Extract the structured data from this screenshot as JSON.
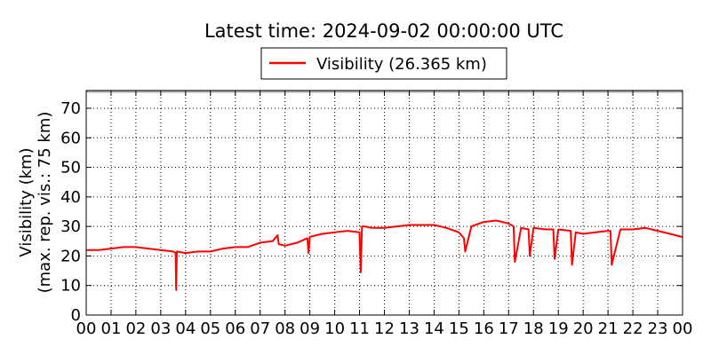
{
  "chart_data": {
    "type": "line",
    "title": "Latest time: 2024-09-02 00:00:00 UTC",
    "ylabel_line1": "Visibility (km)",
    "ylabel_line2": "(max. rep. vis.: 75 km)",
    "xlabel": "",
    "xlim": [
      0,
      24
    ],
    "ylim": [
      0,
      76
    ],
    "x_ticks": [
      0,
      1,
      2,
      3,
      4,
      5,
      6,
      7,
      8,
      9,
      10,
      11,
      12,
      13,
      14,
      15,
      16,
      17,
      18,
      19,
      20,
      21,
      22,
      23,
      24
    ],
    "x_tick_labels": [
      "00",
      "01",
      "02",
      "03",
      "04",
      "05",
      "06",
      "07",
      "08",
      "09",
      "10",
      "11",
      "12",
      "13",
      "14",
      "15",
      "16",
      "17",
      "18",
      "19",
      "20",
      "21",
      "22",
      "23",
      "00"
    ],
    "y_ticks": [
      0,
      10,
      20,
      30,
      40,
      50,
      60,
      70
    ],
    "y_tick_labels": [
      "0",
      "10",
      "20",
      "30",
      "40",
      "50",
      "60",
      "70"
    ],
    "grid": true,
    "legend_position": "top-center",
    "series": [
      {
        "name": "Visibility (26.365 km)",
        "color": "#ff0000",
        "x": [
          0.0,
          0.5,
          1.0,
          1.5,
          2.0,
          2.5,
          3.0,
          3.5,
          3.6,
          3.62,
          3.65,
          4.0,
          4.5,
          5.0,
          5.5,
          6.0,
          6.5,
          7.0,
          7.5,
          7.7,
          7.75,
          8.0,
          8.5,
          8.9,
          8.95,
          9.0,
          9.5,
          10.0,
          10.5,
          11.0,
          11.05,
          11.1,
          11.2,
          11.5,
          12.0,
          12.5,
          13.0,
          13.5,
          14.0,
          14.5,
          15.0,
          15.2,
          15.25,
          15.5,
          16.0,
          16.5,
          17.0,
          17.2,
          17.25,
          17.5,
          17.8,
          17.85,
          18.0,
          18.5,
          18.8,
          18.85,
          19.0,
          19.5,
          19.55,
          19.7,
          20.0,
          20.5,
          21.0,
          21.1,
          21.15,
          21.5,
          22.0,
          22.5,
          23.0,
          23.5,
          24.0
        ],
        "y": [
          22.0,
          22.0,
          22.5,
          23.0,
          23.0,
          22.5,
          22.0,
          21.5,
          21.0,
          8.5,
          21.5,
          21.0,
          21.5,
          21.5,
          22.5,
          23.0,
          23.0,
          24.5,
          25.0,
          27.0,
          24.0,
          23.5,
          24.5,
          26.0,
          21.0,
          26.5,
          27.5,
          28.0,
          28.5,
          28.0,
          14.5,
          30.0,
          30.0,
          29.5,
          29.5,
          30.0,
          30.5,
          30.5,
          30.5,
          29.5,
          28.0,
          26.0,
          21.5,
          30.0,
          31.5,
          32.0,
          31.0,
          30.0,
          18.0,
          29.5,
          29.0,
          20.0,
          29.5,
          29.0,
          29.0,
          19.0,
          29.0,
          28.5,
          17.0,
          28.0,
          27.5,
          28.0,
          28.5,
          28.5,
          17.0,
          29.0,
          29.0,
          29.5,
          28.5,
          27.5,
          26.4
        ]
      }
    ]
  }
}
